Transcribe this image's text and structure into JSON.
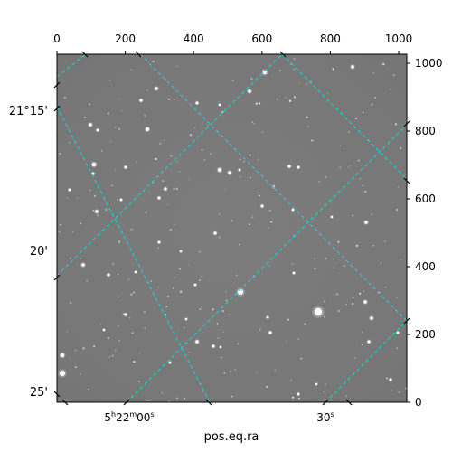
{
  "figure": {
    "xlabel": "pos.eq.ra",
    "pixel_axes": {
      "x_range": [
        0,
        1024
      ],
      "y_range": [
        0,
        1024
      ],
      "x_ticks": [
        0,
        200,
        400,
        600,
        800,
        1000
      ],
      "y_ticks": [
        0,
        200,
        400,
        600,
        800,
        1000
      ]
    },
    "ra_tick_labels": [
      "5h22m00s",
      "30s"
    ],
    "dec_tick_labels": [
      "21°15'",
      "20'",
      "25'"
    ],
    "colors": {
      "sky_background": "#7a7a7a",
      "grid": "#00e0e0",
      "stars": "#ffffff",
      "frame": "#000000"
    },
    "grid_style": "dashed",
    "image_description_kind": "grayscale astronomical star field with equatorial coordinate grid overlay"
  }
}
